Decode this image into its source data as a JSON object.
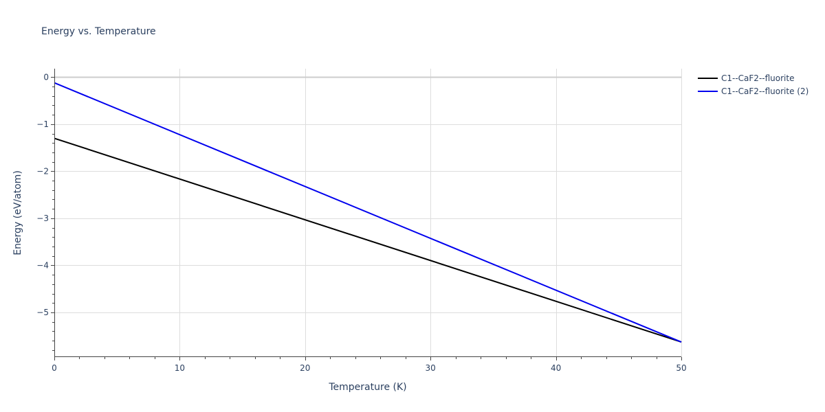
{
  "chart_data": {
    "type": "line",
    "title": "Energy vs. Temperature",
    "xlabel": "Temperature (K)",
    "ylabel": "Energy (eV/atom)",
    "xlim": [
      0,
      50
    ],
    "ylim": [
      -5.95,
      0.18
    ],
    "x_ticks": [
      0,
      10,
      20,
      30,
      40,
      50
    ],
    "x_tick_labels": [
      "0",
      "10",
      "20",
      "30",
      "40",
      "50"
    ],
    "y_ticks": [
      0,
      -1,
      -2,
      -3,
      -4,
      -5
    ],
    "y_tick_labels": [
      "0",
      "−1",
      "−2",
      "−3",
      "−4",
      "−5"
    ],
    "grid": true,
    "legend_position": "top-right outside",
    "series": [
      {
        "name": "C1--CaF2--fluorite",
        "color": "#000000",
        "x": [
          0,
          50
        ],
        "y": [
          -1.3,
          -5.63
        ]
      },
      {
        "name": "C1--CaF2--fluorite (2)",
        "color": "#0000ee",
        "x": [
          0,
          50
        ],
        "y": [
          -0.12,
          -5.63
        ]
      }
    ]
  }
}
